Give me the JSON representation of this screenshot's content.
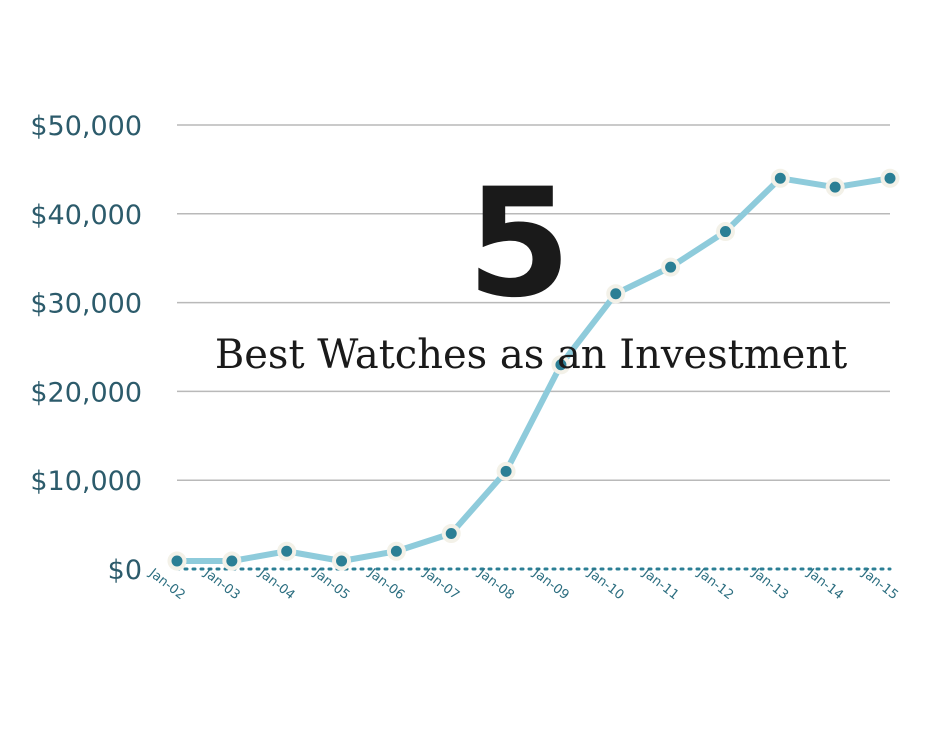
{
  "overlay": {
    "number": "5",
    "headline": "Best Watches as an Investment"
  },
  "chart_data": {
    "type": "line",
    "title": "",
    "xlabel": "",
    "ylabel": "",
    "categories": [
      "Jan-02",
      "Jan-03",
      "Jan-04",
      "Jan-05",
      "Jan-06",
      "Jan-07",
      "Jan-08",
      "Jan-09",
      "Jan-10",
      "Jan-11",
      "Jan-12",
      "Jan-13",
      "Jan-14",
      "Jan-15"
    ],
    "y_ticks": [
      0,
      10000,
      20000,
      30000,
      40000,
      50000
    ],
    "y_tick_labels": [
      "$0",
      "$10,000",
      "$20,000",
      "$30,000",
      "$40,000",
      "$50,000"
    ],
    "ylim": [
      0,
      50000
    ],
    "grid": true,
    "series": [
      {
        "values": [
          900,
          900,
          2000,
          900,
          2000,
          4000,
          11000,
          23000,
          31000,
          34000,
          38000,
          44000,
          43000,
          44000
        ]
      }
    ],
    "colors": {
      "line": "#8ecbdb",
      "marker": "#2b7f95",
      "marker_ring": "#f3f1e8",
      "grid": "#b9b9b9",
      "baseline": "#2b7f95"
    }
  }
}
